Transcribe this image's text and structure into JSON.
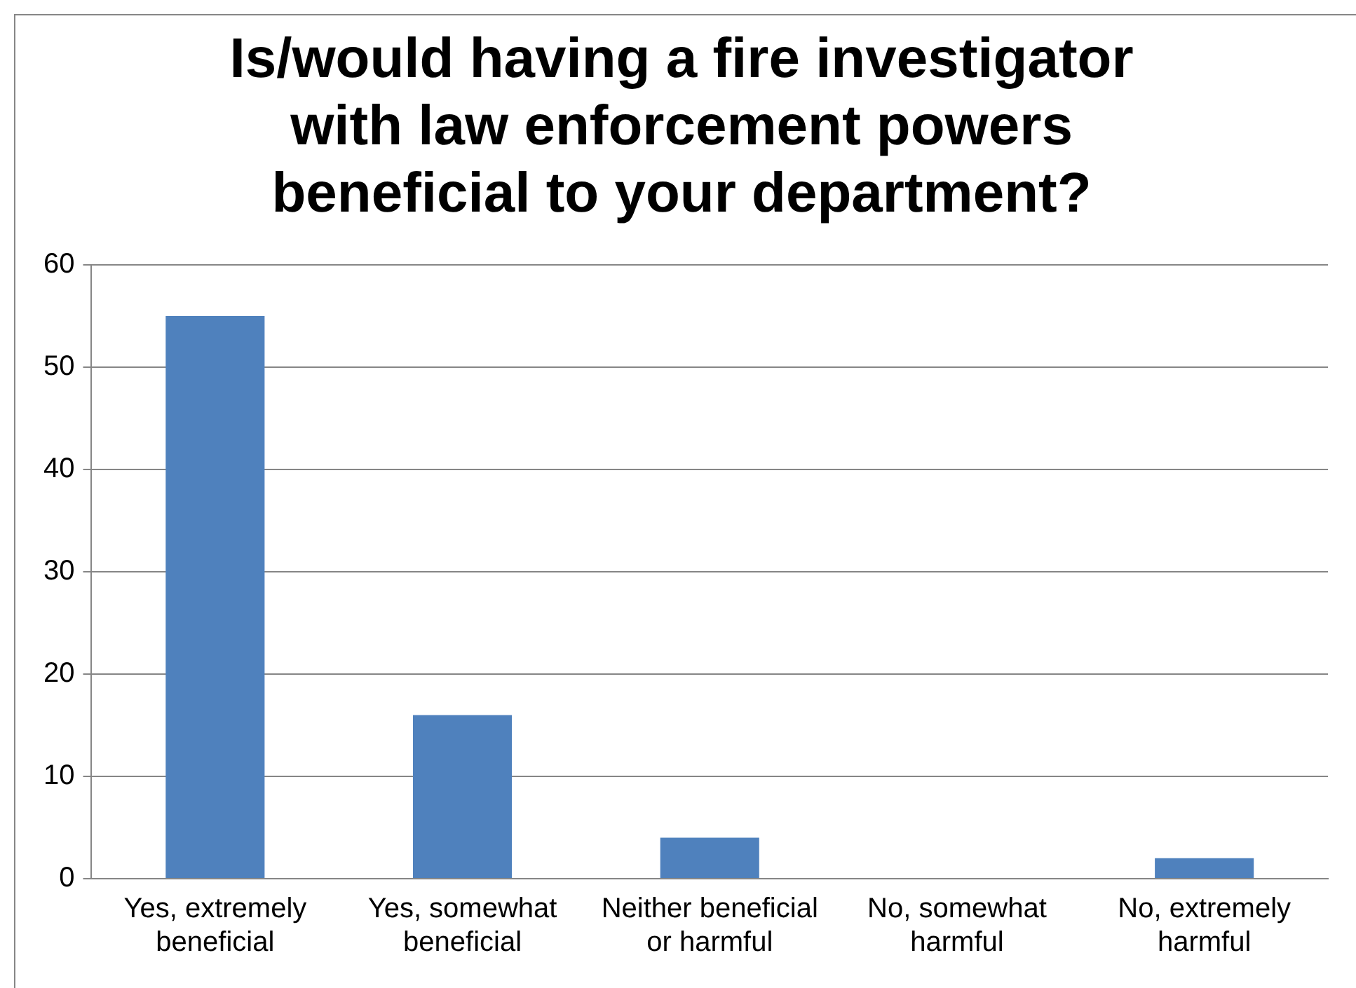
{
  "chart_data": {
    "type": "bar",
    "title": "Is/would having a fire investigator with law enforcement powers beneficial to your department?",
    "categories": [
      "Yes, extremely beneficial",
      "Yes, somewhat beneficial",
      "Neither beneficial or harmful",
      "No, somewhat harmful",
      "No, extremely harmful"
    ],
    "values": [
      55,
      16,
      4,
      0,
      2
    ],
    "color": "#4f81bd",
    "ylim": [
      0,
      60
    ],
    "yticks": [
      0,
      10,
      20,
      30,
      40,
      50,
      60
    ],
    "grid": "y",
    "legend": false
  }
}
